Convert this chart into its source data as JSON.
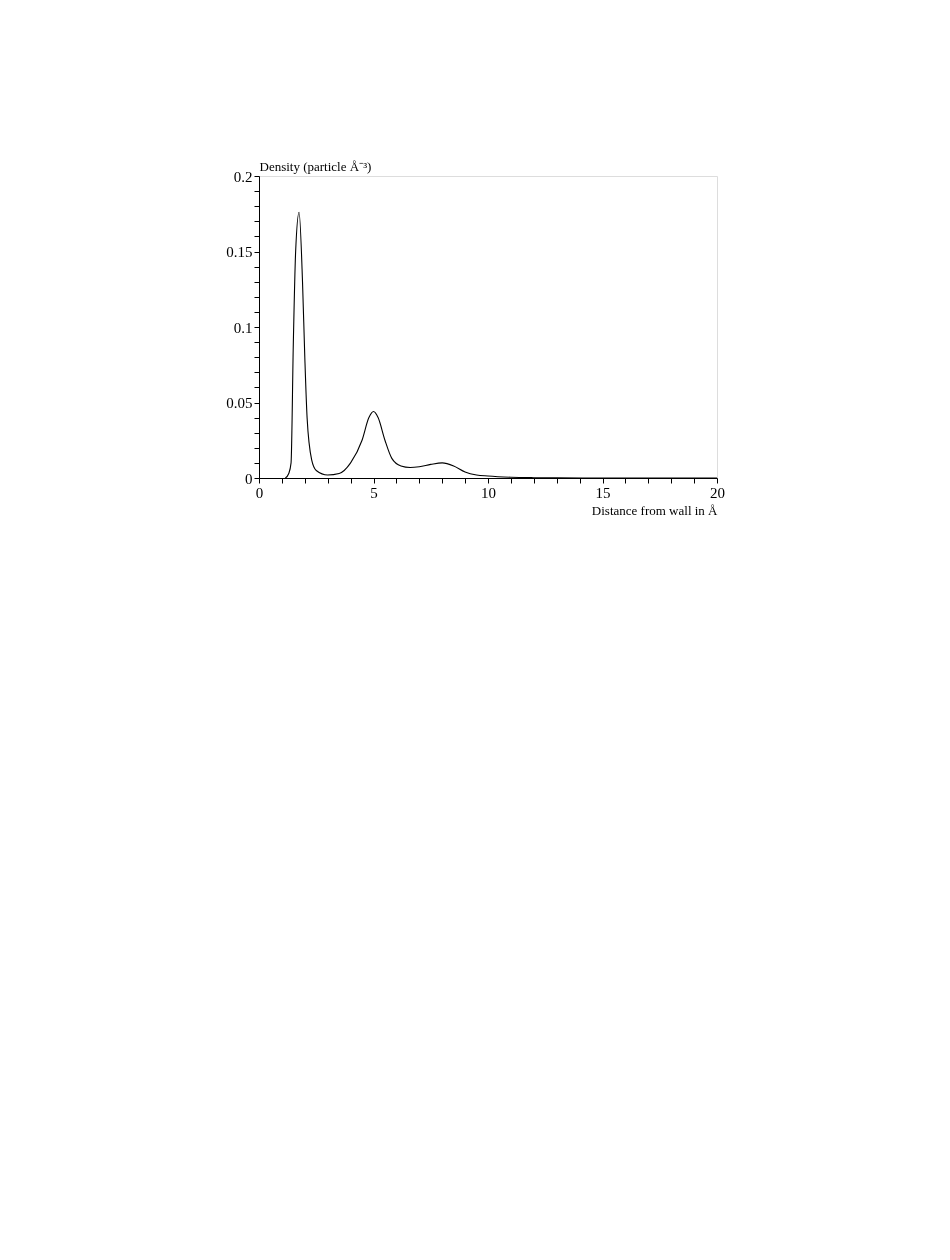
{
  "chart_data": {
    "type": "line",
    "xlabel": "Distance from wall in Å",
    "ylabel": "Density (particle Å⁻³)",
    "x": [
      1.15,
      1.3,
      1.4,
      1.5,
      1.6,
      1.75,
      1.9,
      2.0,
      2.1,
      2.3,
      2.5,
      3.0,
      3.5,
      4.0,
      4.5,
      4.8,
      5.0,
      5.2,
      5.5,
      5.8,
      6.2,
      6.6,
      7.0,
      7.5,
      8.0,
      8.5,
      9.0,
      9.5,
      10,
      11,
      12,
      13,
      15,
      20
    ],
    "series": [
      {
        "color": "#000000",
        "values": [
          0,
          0.003,
          0.01,
          0.09,
          0.15,
          0.176,
          0.13,
          0.08,
          0.04,
          0.012,
          0.005,
          0.002,
          0.003,
          0.01,
          0.025,
          0.04,
          0.044,
          0.04,
          0.025,
          0.013,
          0.008,
          0.007,
          0.0075,
          0.009,
          0.01,
          0.008,
          0.004,
          0.002,
          0.0013,
          0.0005,
          0.0002,
          0.0001,
          0,
          0
        ]
      }
    ],
    "xlim": [
      0,
      20
    ],
    "ylim": [
      0,
      0.2
    ],
    "xticks": [
      0,
      {
        "value": 1,
        "label": null
      },
      {
        "value": 2,
        "label": null
      },
      {
        "value": 3,
        "label": null
      },
      {
        "value": 4,
        "label": null
      },
      5,
      {
        "value": 6,
        "label": null
      },
      {
        "value": 7,
        "label": null
      },
      {
        "value": 8,
        "label": null
      },
      {
        "value": 9,
        "label": null
      },
      10,
      {
        "value": 11,
        "label": null
      },
      {
        "value": 12,
        "label": null
      },
      {
        "value": 13,
        "label": null
      },
      {
        "value": 14,
        "label": null
      },
      15,
      {
        "value": 16,
        "label": null
      },
      {
        "value": 17,
        "label": null
      },
      {
        "value": 18,
        "label": null
      },
      {
        "value": 19,
        "label": null
      },
      20
    ],
    "yticks": [
      0,
      {
        "value": 0.01,
        "label": null
      },
      {
        "value": 0.02,
        "label": null
      },
      {
        "value": 0.03,
        "label": null
      },
      {
        "value": 0.04,
        "label": null
      },
      0.05,
      {
        "value": 0.06,
        "label": null
      },
      {
        "value": 0.07,
        "label": null
      },
      {
        "value": 0.08,
        "label": null
      },
      {
        "value": 0.09,
        "label": null
      },
      0.1,
      {
        "value": 0.11,
        "label": null
      },
      {
        "value": 0.12,
        "label": null
      },
      {
        "value": 0.13,
        "label": null
      },
      {
        "value": 0.14,
        "label": null
      },
      0.15,
      {
        "value": 0.16,
        "label": null
      },
      {
        "value": 0.17,
        "label": null
      },
      {
        "value": 0.18,
        "label": null
      },
      {
        "value": 0.19,
        "label": null
      },
      0.2
    ],
    "grid": false,
    "marker": "none",
    "line_style": "solid"
  }
}
